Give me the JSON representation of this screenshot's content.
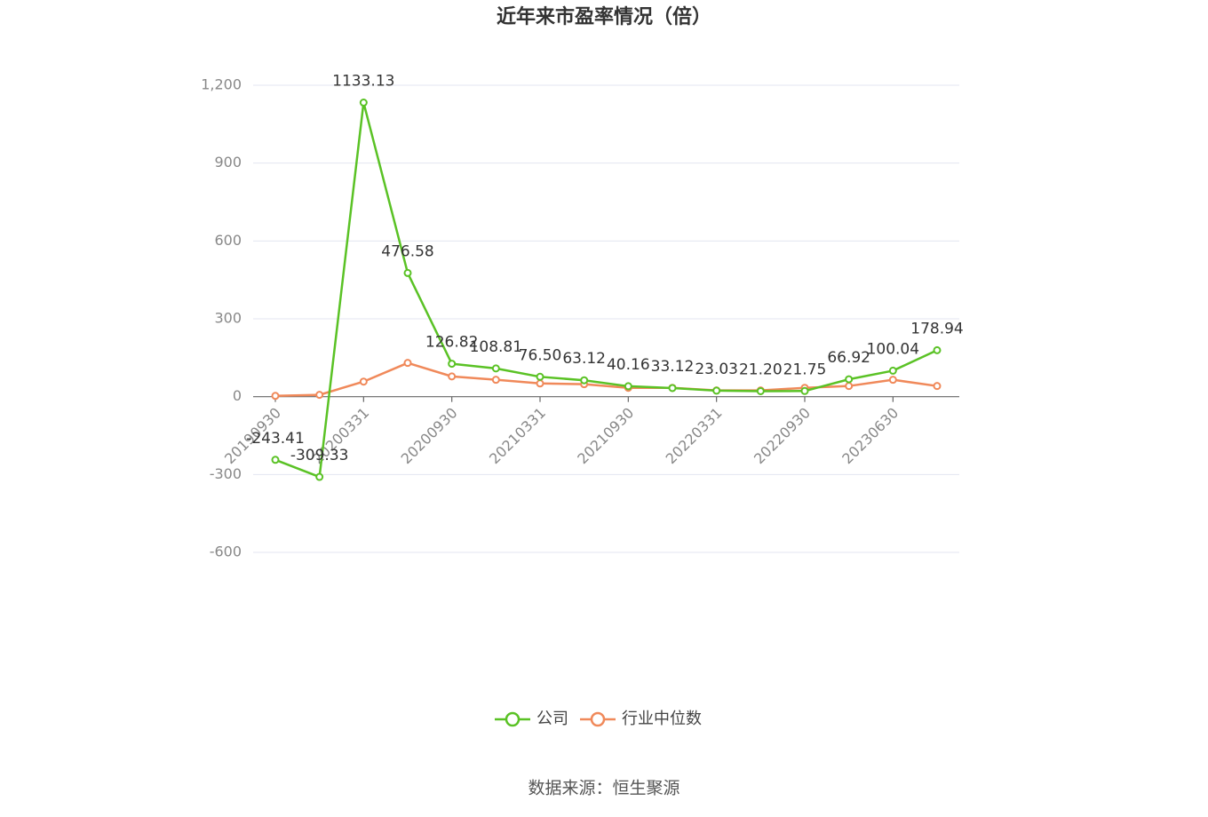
{
  "chart_data": {
    "type": "line",
    "title": "近年来市盈率情况（倍）",
    "source": "数据来源：恒生聚源",
    "categories": [
      "20190930",
      null,
      "20200331",
      null,
      "20200930",
      null,
      "20210331",
      null,
      "20210930",
      null,
      "20220331",
      null,
      "20220930",
      null,
      "20230630",
      null
    ],
    "series": [
      {
        "name": "公司",
        "color": "#5ac225",
        "values": [
          -243.41,
          -309.33,
          1133.13,
          476.58,
          126.82,
          108.81,
          76.5,
          63.12,
          40.16,
          33.12,
          23.03,
          21.2,
          21.75,
          66.92,
          100.04,
          178.94
        ],
        "value_labels": [
          "-243.41",
          "-309.33",
          "1133.13",
          "476.58",
          "126.82",
          "108.81",
          "76.50",
          "63.12",
          "40.16",
          "33.12",
          "23.03",
          "21.20",
          "21.75",
          "66.92",
          "100.04",
          "178.94"
        ]
      },
      {
        "name": "行业中位数",
        "color": "#f0895a",
        "values": [
          3,
          7,
          58,
          130,
          78,
          65,
          51,
          48,
          34,
          34,
          24,
          24,
          34,
          41,
          65,
          41
        ]
      }
    ],
    "ylim": [
      -600,
      1200
    ],
    "yticks": [
      -600,
      -300,
      0,
      300,
      600,
      900,
      {
        "value": 1200,
        "label": "1,200"
      }
    ],
    "grid": true,
    "legend": "bottom"
  }
}
